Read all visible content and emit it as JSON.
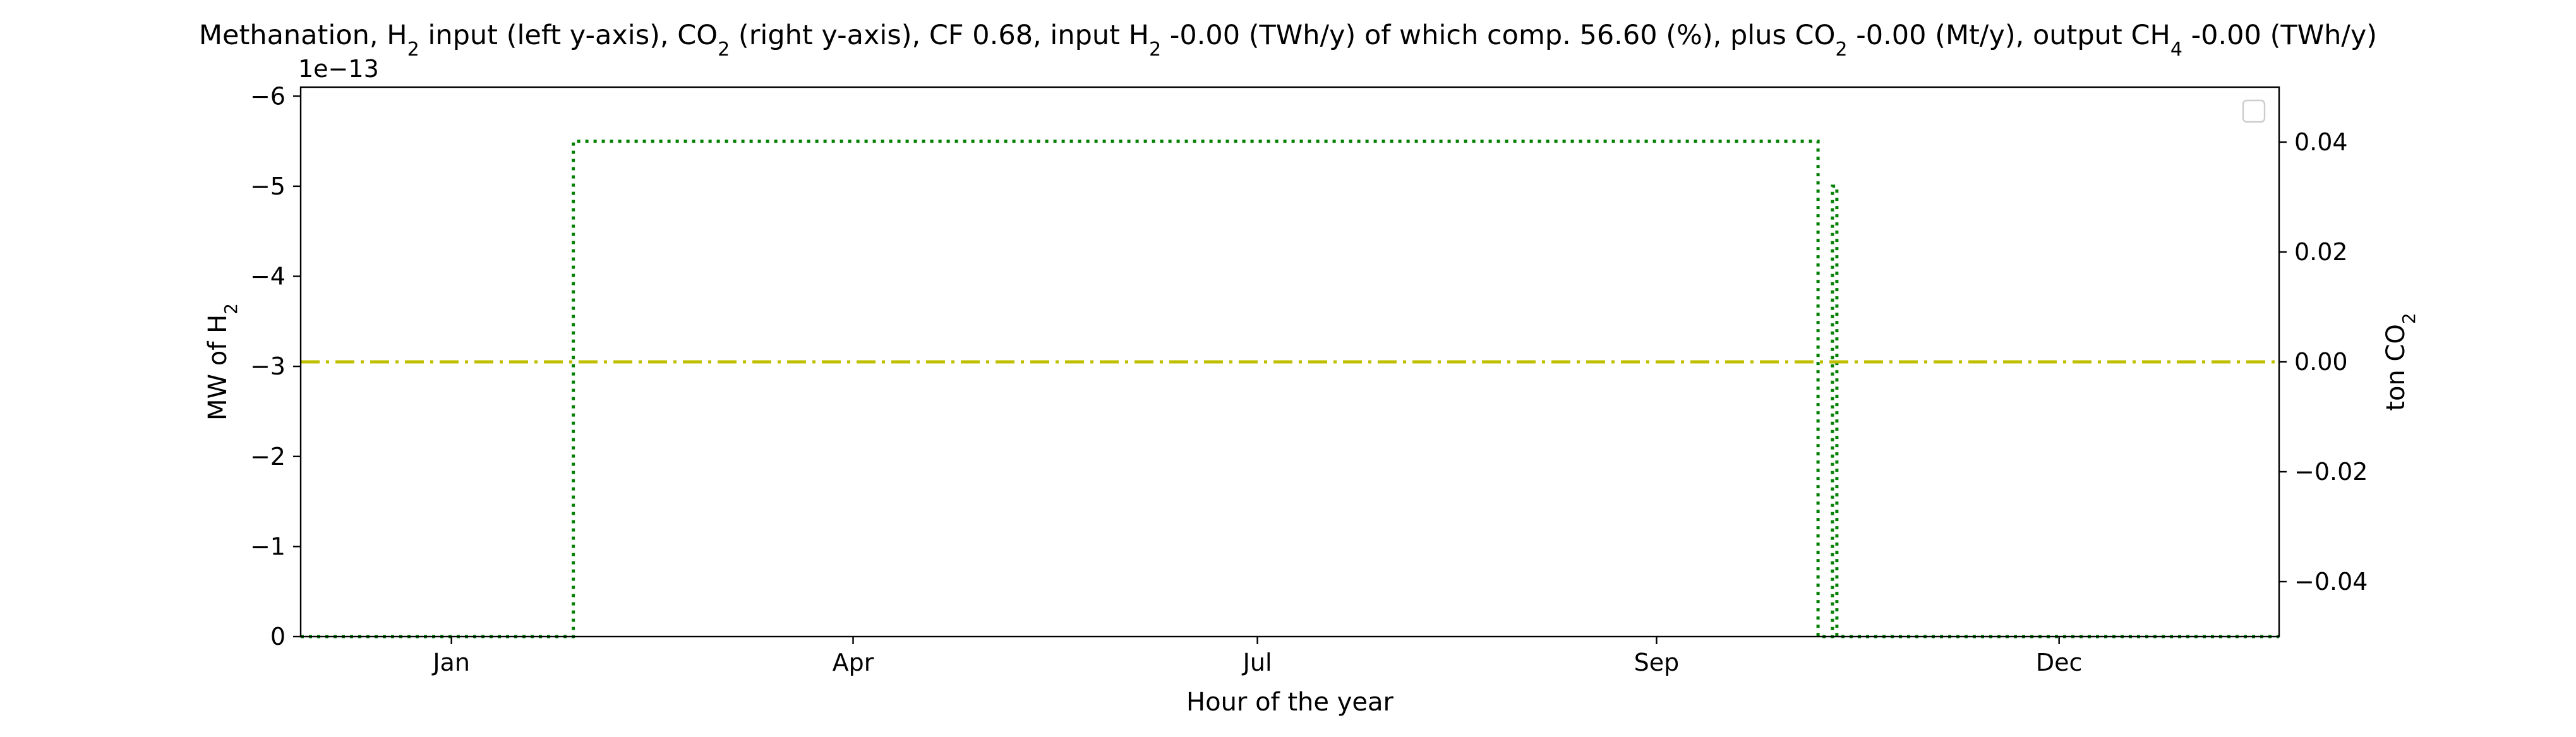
{
  "chart_data": {
    "type": "line",
    "title": {
      "parts": [
        {
          "text": "Methanation, H"
        },
        {
          "text": "2",
          "sub": true
        },
        {
          "text": " input (left y-axis), CO"
        },
        {
          "text": "2",
          "sub": true
        },
        {
          "text": " (right y-axis), CF 0.68, input H"
        },
        {
          "text": "2",
          "sub": true
        },
        {
          "text": " -0.00 (TWh/y) of which comp. 56.60 (%), plus CO"
        },
        {
          "text": "2",
          "sub": true
        },
        {
          "text": " -0.00 (Mt/y), output CH"
        },
        {
          "text": "4",
          "sub": true
        },
        {
          "text": " -0.00 (TWh/y)"
        }
      ]
    },
    "xlabel": "Hour of the year",
    "ylabel_left": {
      "parts": [
        {
          "text": "MW of H"
        },
        {
          "text": "2",
          "sub": true
        }
      ]
    },
    "ylabel_right": {
      "parts": [
        {
          "text": "ton CO"
        },
        {
          "text": "2",
          "sub": true
        }
      ]
    },
    "x_axis": {
      "unit": "hour",
      "range": [
        -1360,
        16490
      ],
      "ticks": [
        {
          "label": "Jan",
          "value": 0
        },
        {
          "label": "Apr",
          "value": 3624
        },
        {
          "label": "Jul",
          "value": 7272
        },
        {
          "label": "Sep",
          "value": 10873
        },
        {
          "label": "Dec",
          "value": 14505
        }
      ]
    },
    "y_left": {
      "offset_label": "1e−13",
      "range": [
        0,
        -6.1
      ],
      "inverted": true,
      "ticks": [
        {
          "label": "0",
          "value": 0
        },
        {
          "label": "−1",
          "value": -1
        },
        {
          "label": "−2",
          "value": -2
        },
        {
          "label": "−3",
          "value": -3
        },
        {
          "label": "−4",
          "value": -4
        },
        {
          "label": "−5",
          "value": -5
        },
        {
          "label": "−6",
          "value": -6
        }
      ]
    },
    "y_right": {
      "range": [
        -0.05,
        0.05
      ],
      "ticks": [
        {
          "label": "−0.04",
          "value": -0.04
        },
        {
          "label": "−0.02",
          "value": -0.02
        },
        {
          "label": "0.00",
          "value": 0
        },
        {
          "label": "0.02",
          "value": 0.02
        },
        {
          "label": "0.04",
          "value": 0.04
        }
      ]
    },
    "series": [
      {
        "axis": "left",
        "color": "#008000",
        "style": "dotted",
        "points": [
          [
            -1360,
            0
          ],
          [
            1100,
            0
          ],
          [
            1100,
            -5.5
          ],
          [
            12330,
            -5.5
          ],
          [
            12330,
            0
          ],
          [
            12460,
            0
          ],
          [
            12460,
            -5.0
          ],
          [
            12500,
            -5.0
          ],
          [
            12500,
            0
          ],
          [
            16490,
            0
          ]
        ]
      },
      {
        "axis": "right",
        "color": "#bfbf00",
        "style": "dashdot",
        "points": [
          [
            -1360,
            0
          ],
          [
            16490,
            0
          ]
        ]
      }
    ],
    "legend": {
      "placement": "top-right",
      "entries": []
    },
    "grid": false
  }
}
